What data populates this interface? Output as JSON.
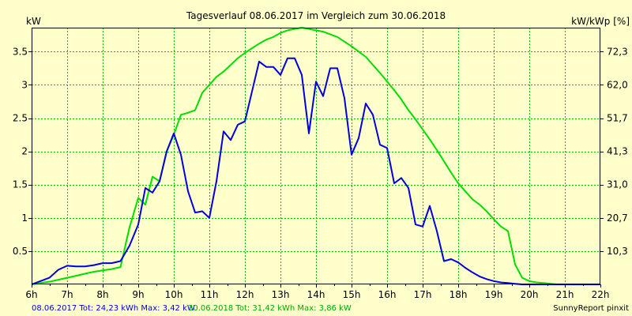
{
  "chart_data": {
    "type": "line",
    "title": "Tagesverlauf 08.06.2017 im Vergleich zum 30.06.2018",
    "y_left_label": "kW",
    "y_right_label": "kW/kWp [%]",
    "xlim": [
      6,
      22
    ],
    "ylim": [
      0,
      3.86
    ],
    "grid": true,
    "x_ticks": [
      6,
      7,
      8,
      9,
      10,
      11,
      12,
      13,
      14,
      15,
      16,
      17,
      18,
      19,
      20,
      21,
      22
    ],
    "x_tick_labels": [
      "6h",
      "7h",
      "8h",
      "9h",
      "10h",
      "11h",
      "12h",
      "13h",
      "14h",
      "15h",
      "16h",
      "17h",
      "18h",
      "19h",
      "20h",
      "21h",
      "22h"
    ],
    "y_left_ticks": [
      0.5,
      1,
      1.5,
      2,
      2.5,
      3,
      3.5
    ],
    "y_left_tick_labels": [
      "0.5",
      "1",
      "1.5",
      "2",
      "2.5",
      "3",
      "3.5"
    ],
    "y_right_ticks": [
      0.5,
      1,
      1.5,
      2,
      2.5,
      3,
      3.5
    ],
    "y_right_tick_labels": [
      "10,3",
      "20,7",
      "31,0",
      "41,3",
      "51,7",
      "62,0",
      "72,3"
    ],
    "series": [
      {
        "name": "08.06.2017",
        "color": "#0000DD",
        "x": [
          6.0,
          6.25,
          6.5,
          6.75,
          7.0,
          7.25,
          7.5,
          7.75,
          8.0,
          8.25,
          8.5,
          8.75,
          9.0,
          9.2,
          9.4,
          9.6,
          9.8,
          10.0,
          10.2,
          10.4,
          10.6,
          10.8,
          11.0,
          11.2,
          11.4,
          11.6,
          11.8,
          12.0,
          12.2,
          12.4,
          12.6,
          12.8,
          13.0,
          13.2,
          13.4,
          13.6,
          13.8,
          14.0,
          14.2,
          14.4,
          14.6,
          14.8,
          15.0,
          15.2,
          15.4,
          15.6,
          15.8,
          16.0,
          16.2,
          16.4,
          16.6,
          16.8,
          17.0,
          17.2,
          17.4,
          17.6,
          17.8,
          18.0,
          18.2,
          18.4,
          18.6,
          18.8,
          19.0,
          19.2,
          19.4,
          19.6,
          19.8,
          20.0,
          20.2,
          20.4,
          20.6,
          20.8,
          21.0,
          21.25,
          21.5,
          21.75,
          22.0
        ],
        "y": [
          0.0,
          0.05,
          0.1,
          0.22,
          0.28,
          0.27,
          0.27,
          0.29,
          0.32,
          0.32,
          0.35,
          0.58,
          0.9,
          1.45,
          1.38,
          1.55,
          2.0,
          2.27,
          1.95,
          1.4,
          1.08,
          1.1,
          1.0,
          1.55,
          2.3,
          2.17,
          2.4,
          2.45,
          2.9,
          3.35,
          3.27,
          3.27,
          3.15,
          3.4,
          3.4,
          3.15,
          2.27,
          3.05,
          2.83,
          3.25,
          3.25,
          2.8,
          1.95,
          2.2,
          2.72,
          2.55,
          2.1,
          2.05,
          1.52,
          1.6,
          1.45,
          0.9,
          0.87,
          1.18,
          0.8,
          0.35,
          0.38,
          0.33,
          0.25,
          0.18,
          0.12,
          0.08,
          0.05,
          0.03,
          0.02,
          0.01,
          0.0,
          0.0,
          0.0,
          0.0,
          0.0,
          0.0,
          0.0,
          0.0,
          0.0,
          0.0,
          0.0
        ]
      },
      {
        "name": "30.06.2018",
        "color": "#00DD00",
        "x": [
          6.0,
          6.25,
          6.5,
          6.75,
          7.0,
          7.25,
          7.5,
          7.75,
          8.0,
          8.25,
          8.5,
          8.75,
          9.0,
          9.2,
          9.4,
          9.6,
          9.8,
          10.0,
          10.2,
          10.4,
          10.6,
          10.8,
          11.0,
          11.2,
          11.4,
          11.6,
          11.8,
          12.0,
          12.2,
          12.4,
          12.6,
          12.8,
          13.0,
          13.2,
          13.4,
          13.6,
          13.8,
          14.0,
          14.2,
          14.4,
          14.6,
          14.8,
          15.0,
          15.2,
          15.4,
          15.6,
          15.8,
          16.0,
          16.2,
          16.4,
          16.6,
          16.8,
          17.0,
          17.2,
          17.4,
          17.6,
          17.8,
          18.0,
          18.2,
          18.4,
          18.6,
          18.8,
          19.0,
          19.2,
          19.4,
          19.6,
          19.8,
          20.0,
          20.2,
          20.4,
          20.6,
          20.8,
          21.0,
          21.25,
          21.5,
          21.75,
          22.0
        ],
        "y": [
          0.0,
          0.02,
          0.04,
          0.07,
          0.1,
          0.13,
          0.16,
          0.19,
          0.21,
          0.23,
          0.26,
          0.85,
          1.3,
          1.2,
          1.62,
          1.55,
          2.0,
          2.25,
          2.55,
          2.58,
          2.62,
          2.88,
          3.0,
          3.12,
          3.2,
          3.3,
          3.4,
          3.48,
          3.55,
          3.62,
          3.68,
          3.72,
          3.78,
          3.82,
          3.84,
          3.86,
          3.84,
          3.82,
          3.8,
          3.76,
          3.72,
          3.65,
          3.58,
          3.5,
          3.42,
          3.3,
          3.18,
          3.05,
          2.92,
          2.78,
          2.62,
          2.48,
          2.33,
          2.18,
          2.02,
          1.85,
          1.68,
          1.52,
          1.4,
          1.28,
          1.2,
          1.1,
          0.98,
          0.87,
          0.8,
          0.3,
          0.1,
          0.05,
          0.03,
          0.02,
          0.01,
          0.0,
          0.0,
          0.0,
          0.0,
          0.0,
          0.0
        ]
      }
    ]
  },
  "footer": {
    "stats_left": "08.06.2017 Tot: 24,23 kWh Max: 3,42 kW",
    "stats_right": "30.06.2018 Tot: 31,42 kWh Max: 3,86 kW",
    "credit": "SunnyReport pinxit"
  }
}
